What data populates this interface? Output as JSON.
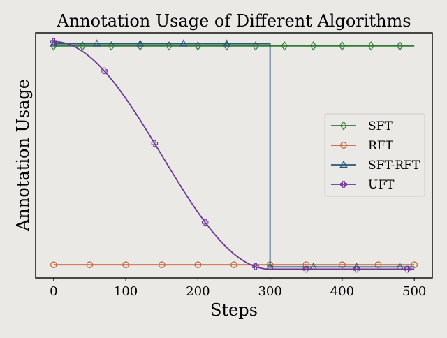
{
  "chart_data": {
    "type": "line",
    "title": "Annotation Usage of Different Algorithms",
    "xlabel": "Steps",
    "ylabel": "Annotation Usage",
    "xlim": [
      -25,
      525
    ],
    "xticks": [
      0,
      100,
      200,
      300,
      400,
      500
    ],
    "ylim": [
      -0.06,
      1.06
    ],
    "y_tick_labels_shown": false,
    "grid": false,
    "legend_position": "center-right",
    "series": [
      {
        "name": "SFT",
        "color": "#2e7d32",
        "marker": "diamond",
        "x": [
          0,
          500
        ],
        "y": [
          1.0,
          1.0
        ],
        "marker_x": [
          0,
          40,
          80,
          120,
          160,
          200,
          240,
          280,
          320,
          360,
          400,
          440,
          480
        ]
      },
      {
        "name": "RFT",
        "color": "#c0623a",
        "marker": "circle",
        "x": [
          0,
          500
        ],
        "y": [
          0.0,
          0.0
        ],
        "marker_x": [
          0,
          50,
          100,
          150,
          200,
          250,
          300,
          350,
          400,
          450,
          500
        ]
      },
      {
        "name": "SFT-RFT",
        "color": "#2b5676",
        "marker": "triangle",
        "x": [
          0,
          300,
          300,
          500
        ],
        "y": [
          1.01,
          1.01,
          -0.01,
          -0.01
        ],
        "marker_x": [
          0,
          60,
          120,
          180,
          240,
          300,
          360,
          420,
          480
        ]
      },
      {
        "name": "UFT",
        "color": "#6c3694",
        "marker": "plus",
        "curve": "cosine",
        "x": [
          0,
          50,
          100,
          150,
          200,
          250,
          300,
          350,
          400,
          450,
          500
        ],
        "y": [
          1.02,
          0.912,
          0.716,
          0.464,
          0.229,
          0.047,
          -0.02,
          -0.02,
          -0.02,
          -0.02,
          -0.02
        ],
        "marker_x": [
          0,
          70,
          140,
          210,
          280,
          350,
          420,
          490
        ]
      }
    ]
  }
}
